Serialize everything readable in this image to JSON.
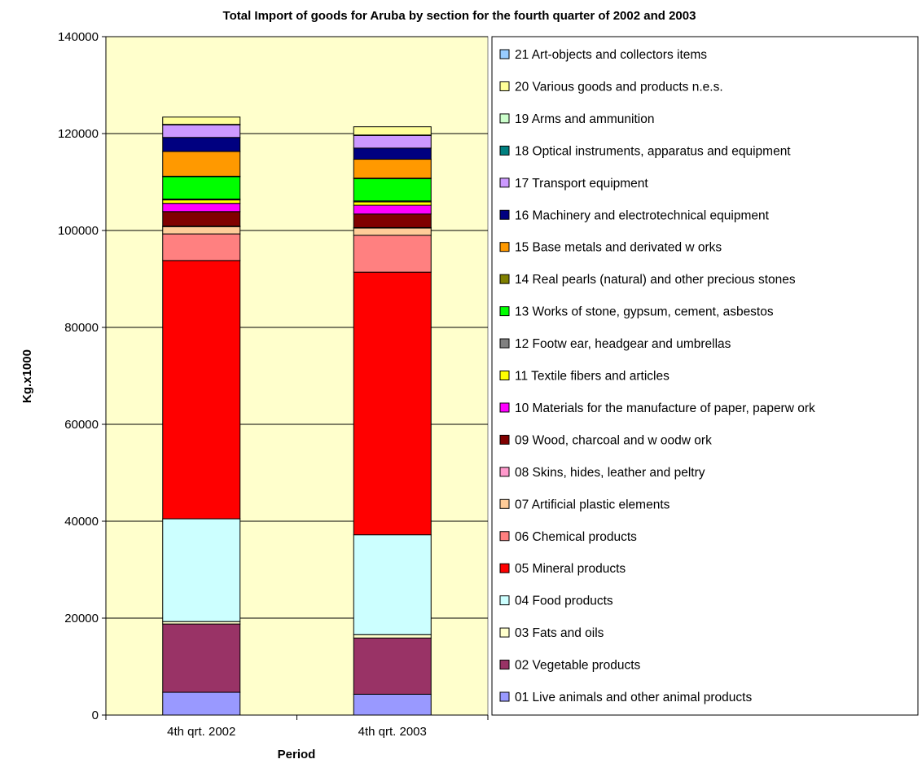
{
  "chart_data": {
    "type": "bar",
    "stacked": true,
    "title": "Total Import of goods for Aruba by section for the fourth quarter of 2002 and 2003",
    "xlabel": "Period",
    "ylabel": "Kg.x1000",
    "ylim": [
      0,
      140000
    ],
    "yticks": [
      "0",
      "20000",
      "40000",
      "60000",
      "80000",
      "100000",
      "120000",
      "140000"
    ],
    "categories": [
      "4th qrt. 2002",
      "4th qrt. 2003"
    ],
    "plot_background": "#ffffcc",
    "gridlines": true,
    "legend_position": "right",
    "series": [
      {
        "name": "01 Live animals and other animal products",
        "color": "#9999ff",
        "values": [
          4700,
          4300
        ]
      },
      {
        "name": "02 Vegetable products",
        "color": "#993366",
        "values": [
          14100,
          11600
        ]
      },
      {
        "name": "03 Fats and oils",
        "color": "#ffffcc",
        "values": [
          500,
          700
        ]
      },
      {
        "name": "04 Food products",
        "color": "#ccffff",
        "values": [
          21200,
          20600
        ]
      },
      {
        "name": "05 Mineral products",
        "color": "#ff0000",
        "values": [
          53300,
          54200
        ]
      },
      {
        "name": "06 Chemical products",
        "color": "#ff8080",
        "values": [
          5500,
          7600
        ]
      },
      {
        "name": "07 Artificial plastic elements",
        "color": "#ffcc99",
        "values": [
          1500,
          1500
        ]
      },
      {
        "name": "08 Skins, hides, leather and peltry",
        "color": "#ff99cc",
        "values": [
          100,
          100
        ]
      },
      {
        "name": "09 Wood, charcoal and woodwork",
        "color": "#800000",
        "values": [
          3000,
          2800
        ]
      },
      {
        "name": "10 Materials for the manufacture of paper, paperwork",
        "color": "#ff00ff",
        "values": [
          1700,
          1800
        ]
      },
      {
        "name": "11 Textile fibers and articles",
        "color": "#ffff00",
        "values": [
          700,
          700
        ]
      },
      {
        "name": "12 Footwear, headgear and umbrellas",
        "color": "#808080",
        "values": [
          200,
          200
        ]
      },
      {
        "name": "13 Works of stone, gypsum, cement, asbestos",
        "color": "#00ff00",
        "values": [
          4600,
          4600
        ]
      },
      {
        "name": "14 Real pearls (natural) and other precious stones",
        "color": "#808000",
        "values": [
          100,
          100
        ]
      },
      {
        "name": "15 Base metals and derivated works",
        "color": "#ff9900",
        "values": [
          5100,
          3900
        ]
      },
      {
        "name": "16 Machinery and electrotechnical equipment",
        "color": "#000080",
        "values": [
          2900,
          2300
        ]
      },
      {
        "name": "17 Transport equipment",
        "color": "#cc99ff",
        "values": [
          2600,
          2600
        ]
      },
      {
        "name": "18 Optical instruments, apparatus and equipment",
        "color": "#008080",
        "values": [
          100,
          100
        ]
      },
      {
        "name": "19 Arms and ammunition",
        "color": "#ccffcc",
        "values": [
          0,
          0
        ]
      },
      {
        "name": "20 Various goods and products n.e.s.",
        "color": "#ffff99",
        "values": [
          1500,
          1700
        ]
      },
      {
        "name": "21 Art-objects and collectors items",
        "color": "#99ccff",
        "values": [
          0,
          0
        ]
      }
    ],
    "legend_labels": [
      "21 Art-objects and collectors items",
      "20 Various goods and products n.e.s.",
      "19 Arms and ammunition",
      "18 Optical instruments, apparatus and equipment",
      "17 Transport equipment",
      "16 Machinery and electrotechnical equipment",
      "15 Base metals and derivated w orks",
      "14 Real pearls (natural) and other precious stones",
      "13 Works of stone, gypsum, cement, asbestos",
      "12 Footw ear, headgear and umbrellas",
      "11 Textile fibers and articles",
      "10 Materials for the manufacture of paper, paperw ork",
      "09 Wood, charcoal and w oodw ork",
      "08 Skins, hides, leather and peltry",
      "07 Artificial plastic elements",
      "06 Chemical products",
      "05 Mineral products",
      "04 Food products",
      "03 Fats and oils",
      "02 Vegetable products",
      "01 Live animals and other animal products"
    ]
  }
}
